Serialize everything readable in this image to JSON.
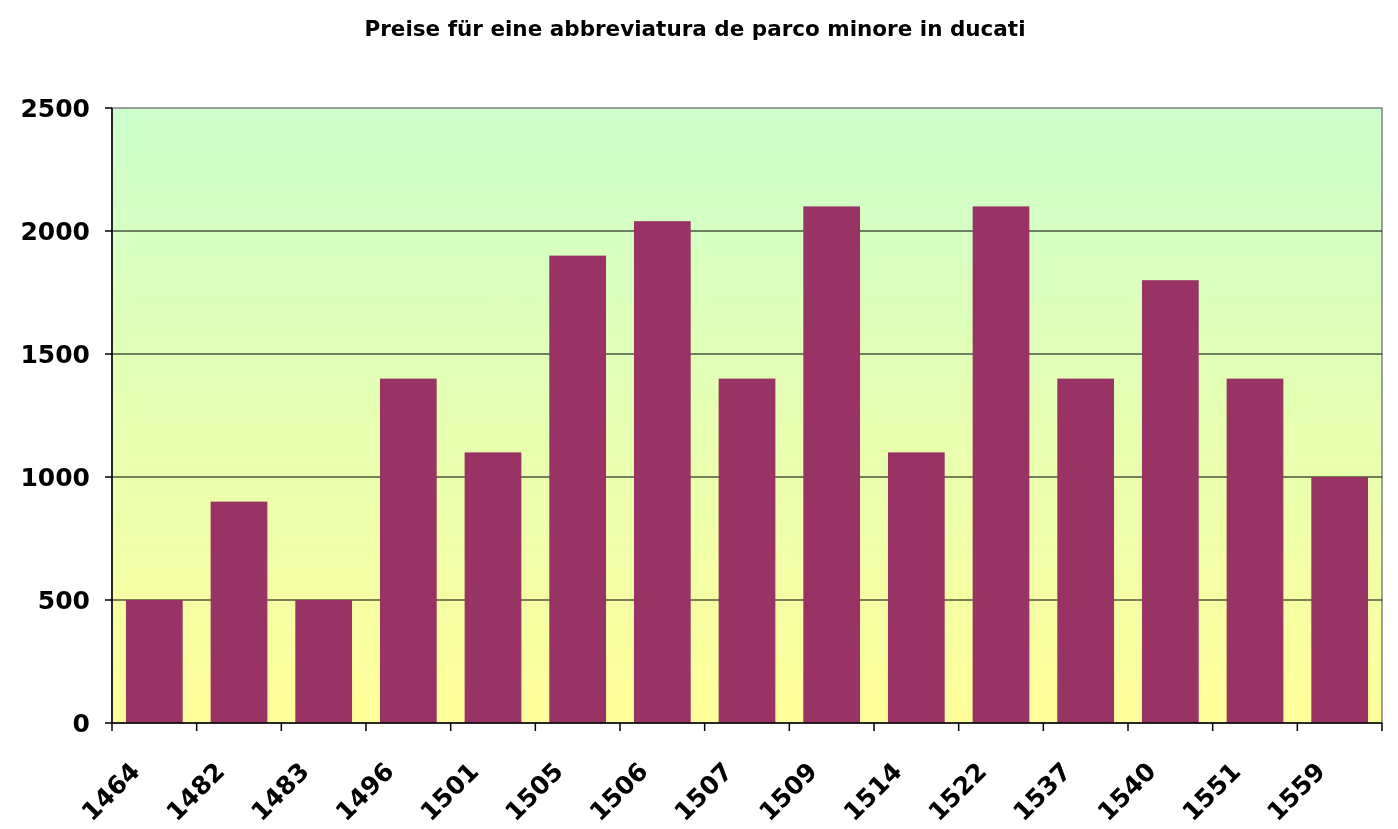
{
  "chart_data": {
    "type": "bar",
    "title": "Preise für eine abbreviatura de parco minore in ducati",
    "categories": [
      "1464",
      "1482",
      "1483",
      "1496",
      "1501",
      "1505",
      "1506",
      "1507",
      "1509",
      "1514",
      "1522",
      "1537",
      "1540",
      "1551",
      "1559"
    ],
    "values": [
      500,
      900,
      500,
      1400,
      1100,
      1900,
      2040,
      1400,
      2100,
      1100,
      2100,
      1400,
      1800,
      1400,
      1000
    ],
    "color": "#993366",
    "ylim": [
      0,
      2500
    ],
    "yticks": [
      0,
      500,
      1000,
      1500,
      2000,
      2500
    ],
    "grid": "y"
  }
}
